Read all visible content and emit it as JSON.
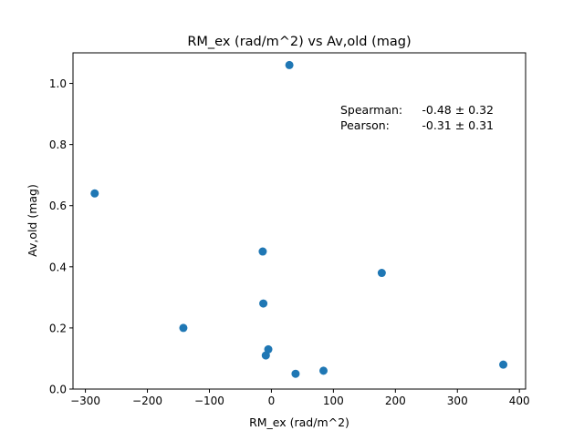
{
  "chart_data": {
    "type": "scatter",
    "title": "RM_ex (rad/m^2) vs Av,old (mag)",
    "xlabel": "RM_ex (rad/m^2)",
    "ylabel": "Av,old (mag)",
    "xlim": [
      -320,
      410
    ],
    "ylim": [
      0.0,
      1.1
    ],
    "xticks": [
      -300,
      -200,
      -100,
      0,
      100,
      200,
      300,
      400
    ],
    "xtick_labels": [
      "−300",
      "−200",
      "−100",
      "0",
      "100",
      "200",
      "300",
      "400"
    ],
    "yticks": [
      0.0,
      0.2,
      0.4,
      0.6,
      0.8,
      1.0
    ],
    "ytick_labels": [
      "0.0",
      "0.2",
      "0.4",
      "0.6",
      "0.8",
      "1.0"
    ],
    "grid": false,
    "marker_color": "#1f77b4",
    "points": [
      {
        "x": 29,
        "y": 1.06
      },
      {
        "x": -285,
        "y": 0.64
      },
      {
        "x": -14,
        "y": 0.45
      },
      {
        "x": 178,
        "y": 0.38
      },
      {
        "x": -13,
        "y": 0.28
      },
      {
        "x": -142,
        "y": 0.2
      },
      {
        "x": -5,
        "y": 0.13
      },
      {
        "x": -9,
        "y": 0.11
      },
      {
        "x": 84,
        "y": 0.06
      },
      {
        "x": 39,
        "y": 0.05
      },
      {
        "x": 374,
        "y": 0.08
      }
    ],
    "annotations": [
      {
        "label": "Spearman:",
        "value": "-0.48 ± 0.32"
      },
      {
        "label": "Pearson:",
        "value": "-0.31 ± 0.31"
      }
    ]
  }
}
